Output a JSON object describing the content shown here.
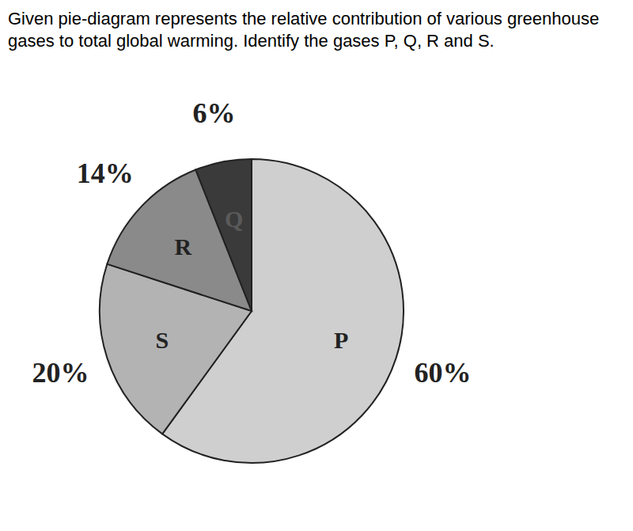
{
  "chart_data": {
    "type": "pie",
    "title": "Given pie-diagram represents the relative contribution of various greenhouse gases to total global warming. Identify the gases P, Q, R and S.",
    "categories": [
      "P",
      "S",
      "R",
      "Q"
    ],
    "values": [
      60,
      20,
      14,
      6
    ],
    "value_labels": [
      "60%",
      "20%",
      "14%",
      "6%"
    ],
    "colors": [
      "#cfcfcf",
      "#b3b3b3",
      "#8a8a8a",
      "#3a3a3a"
    ],
    "data_labels": true
  }
}
